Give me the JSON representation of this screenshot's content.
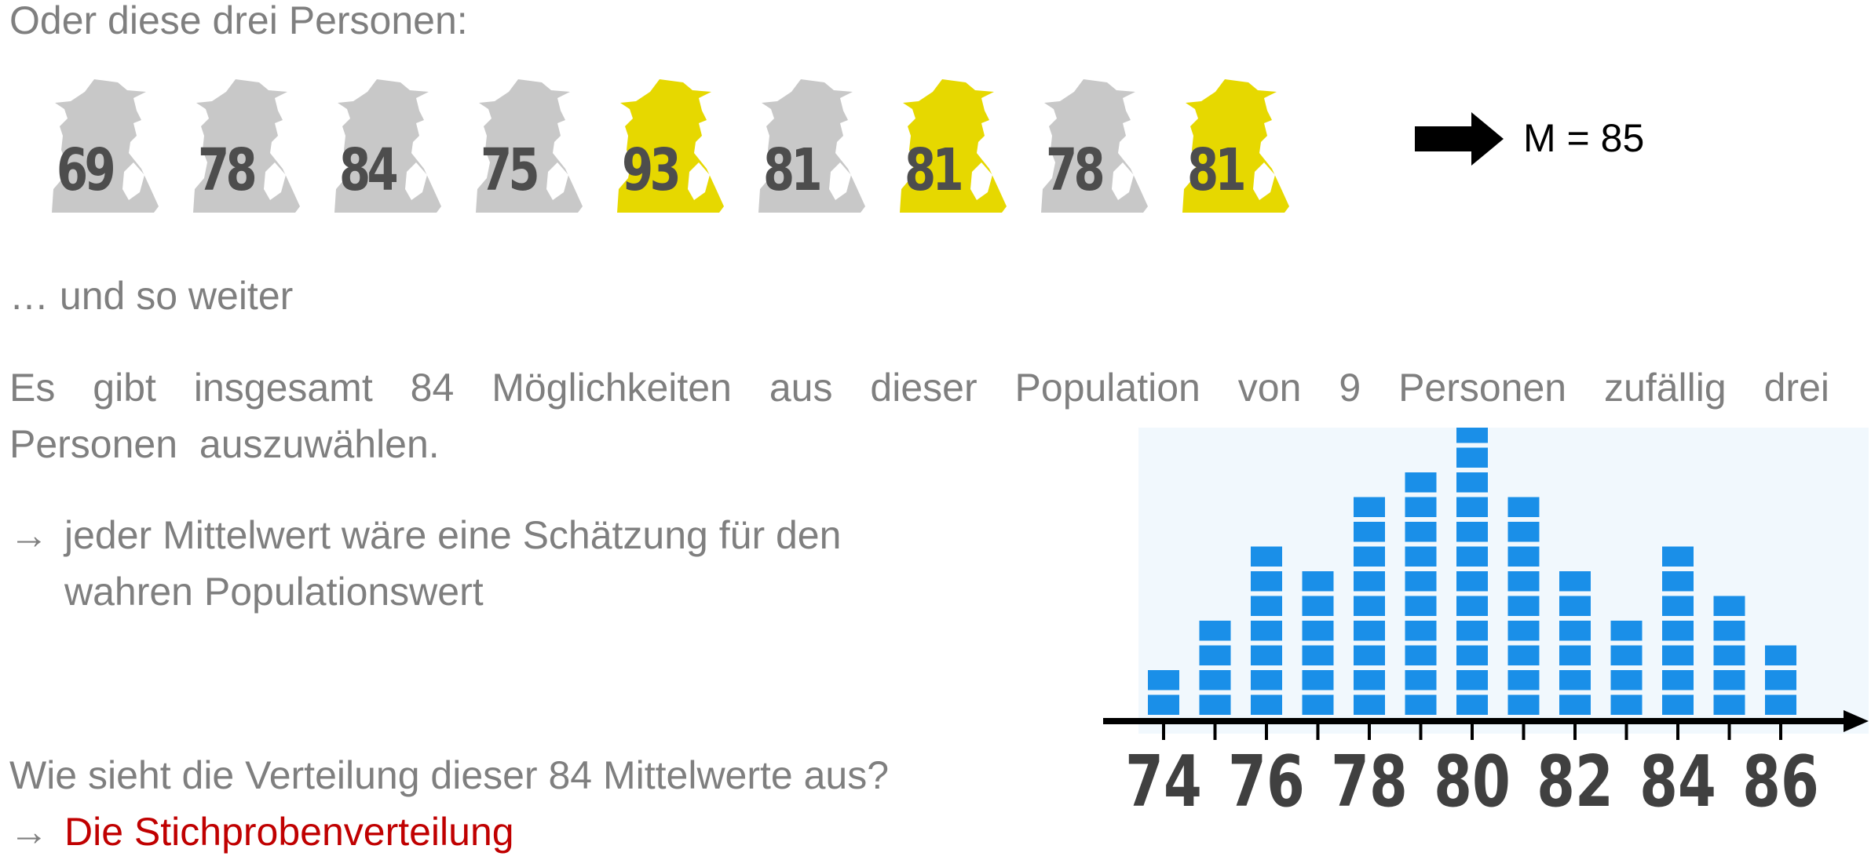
{
  "heading": "Oder diese drei Personen:",
  "persons": [
    {
      "score": "69",
      "selected": false
    },
    {
      "score": "78",
      "selected": false
    },
    {
      "score": "84",
      "selected": false
    },
    {
      "score": "75",
      "selected": false
    },
    {
      "score": "93",
      "selected": true
    },
    {
      "score": "81",
      "selected": false
    },
    {
      "score": "81",
      "selected": true
    },
    {
      "score": "78",
      "selected": false
    },
    {
      "score": "81",
      "selected": true
    }
  ],
  "mean_label": "M = 85",
  "ellipsis_line": "… und so weiter",
  "paragraph": "Es gibt insgesamt 84 Möglichkeiten aus dieser Population von 9 Personen zufällig drei Personen auszuwählen.",
  "bullet": {
    "arrow": "→",
    "line1": "jeder Mittelwert wäre eine Schätzung für den",
    "line2": "wahren Populationswert"
  },
  "question": "Wie sieht die Verteilung dieser 84 Mittelwerte aus?",
  "answer": {
    "arrow": "→",
    "text": "Die Stichprobenverteilung"
  },
  "colors": {
    "text_gray": "#7f7f7f",
    "person_gray": "#c8c8c8",
    "person_yellow": "#e6d800",
    "score_text": "#4d4d4d",
    "answer_red": "#c00000",
    "bar_blue": "#1a8fe8",
    "chart_background": "#f1f8fd"
  },
  "chart_data": {
    "type": "bar",
    "categories": [
      74,
      75,
      76,
      77,
      78,
      79,
      80,
      81,
      82,
      83,
      84,
      85,
      86
    ],
    "values": [
      2,
      4,
      7,
      6,
      9,
      10,
      12,
      9,
      6,
      4,
      7,
      5,
      3
    ],
    "tick_labels": [
      "74",
      "76",
      "78",
      "80",
      "82",
      "84",
      "86"
    ],
    "xlim": [
      74,
      86
    ],
    "title": "",
    "xlabel": "",
    "ylabel": "",
    "grid": false
  }
}
